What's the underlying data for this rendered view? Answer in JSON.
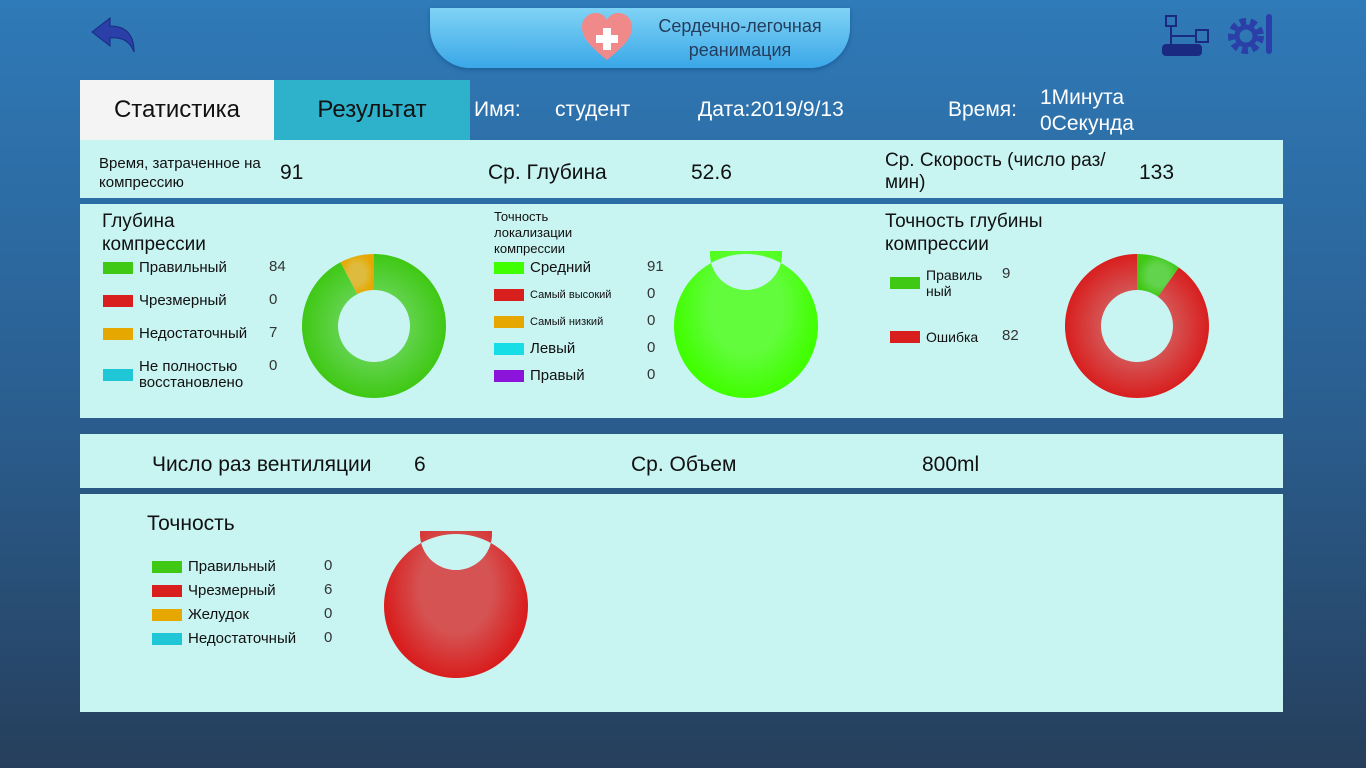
{
  "header": {
    "title_line1": "Сердечно-легочная",
    "title_line2": "реанимация"
  },
  "tabs": {
    "statistics": "Статистика",
    "result": "Результат"
  },
  "info": {
    "name_label": "Имя:",
    "name_value": "студент",
    "date": "Дата:2019/9/13",
    "time_label": "Время:",
    "time_min": "1Минута",
    "time_sec": "0Секунда"
  },
  "compression": {
    "time_label": "Время, затраченное на компрессию",
    "time_value": "91",
    "depth_label": "Ср. Глубина",
    "depth_value": "52.6",
    "rate_label": "Ср. Скорость (число раз/мин)",
    "rate_value": "133"
  },
  "depth_chart": {
    "title": "Глубина компрессии",
    "items": [
      {
        "label": "Правильный",
        "value": 84,
        "color": "#3fc814"
      },
      {
        "label": "Чрезмерный",
        "value": 0,
        "color": "#d91e1e"
      },
      {
        "label": "Недостаточный",
        "value": 7,
        "color": "#e6a800"
      },
      {
        "label": "Не полностью восстановлено",
        "value": 0,
        "color": "#1ec6d6"
      }
    ]
  },
  "position_chart": {
    "title": "Точность локализации компрессии",
    "items": [
      {
        "label": "Средний",
        "value": 91,
        "color": "#40ff00"
      },
      {
        "label": "Самый высокий",
        "value": 0,
        "color": "#d91e1e"
      },
      {
        "label": "Самый низкий",
        "value": 0,
        "color": "#e6a800"
      },
      {
        "label": "Левый",
        "value": 0,
        "color": "#17dde6"
      },
      {
        "label": "Правый",
        "value": 0,
        "color": "#8a14d9"
      }
    ]
  },
  "accuracy_chart": {
    "title": "Точность глубины компрессии",
    "items": [
      {
        "label": "Правиль ный",
        "value": 9,
        "color": "#3fc814"
      },
      {
        "label": "Ошибка",
        "value": 82,
        "color": "#d91e1e"
      }
    ]
  },
  "ventilation": {
    "count_label": "Число раз вентиляции",
    "count_value": "6",
    "volume_label": "Ср. Объем",
    "volume_value": "800ml"
  },
  "vent_chart": {
    "title": "Точность",
    "items": [
      {
        "label": "Правильный",
        "value": 0,
        "color": "#3fc814"
      },
      {
        "label": "Чрезмерный",
        "value": 6,
        "color": "#d91e1e"
      },
      {
        "label": "Желудок",
        "value": 0,
        "color": "#e6a800"
      },
      {
        "label": "Недостаточный",
        "value": 0,
        "color": "#1ec6d6"
      }
    ]
  }
}
